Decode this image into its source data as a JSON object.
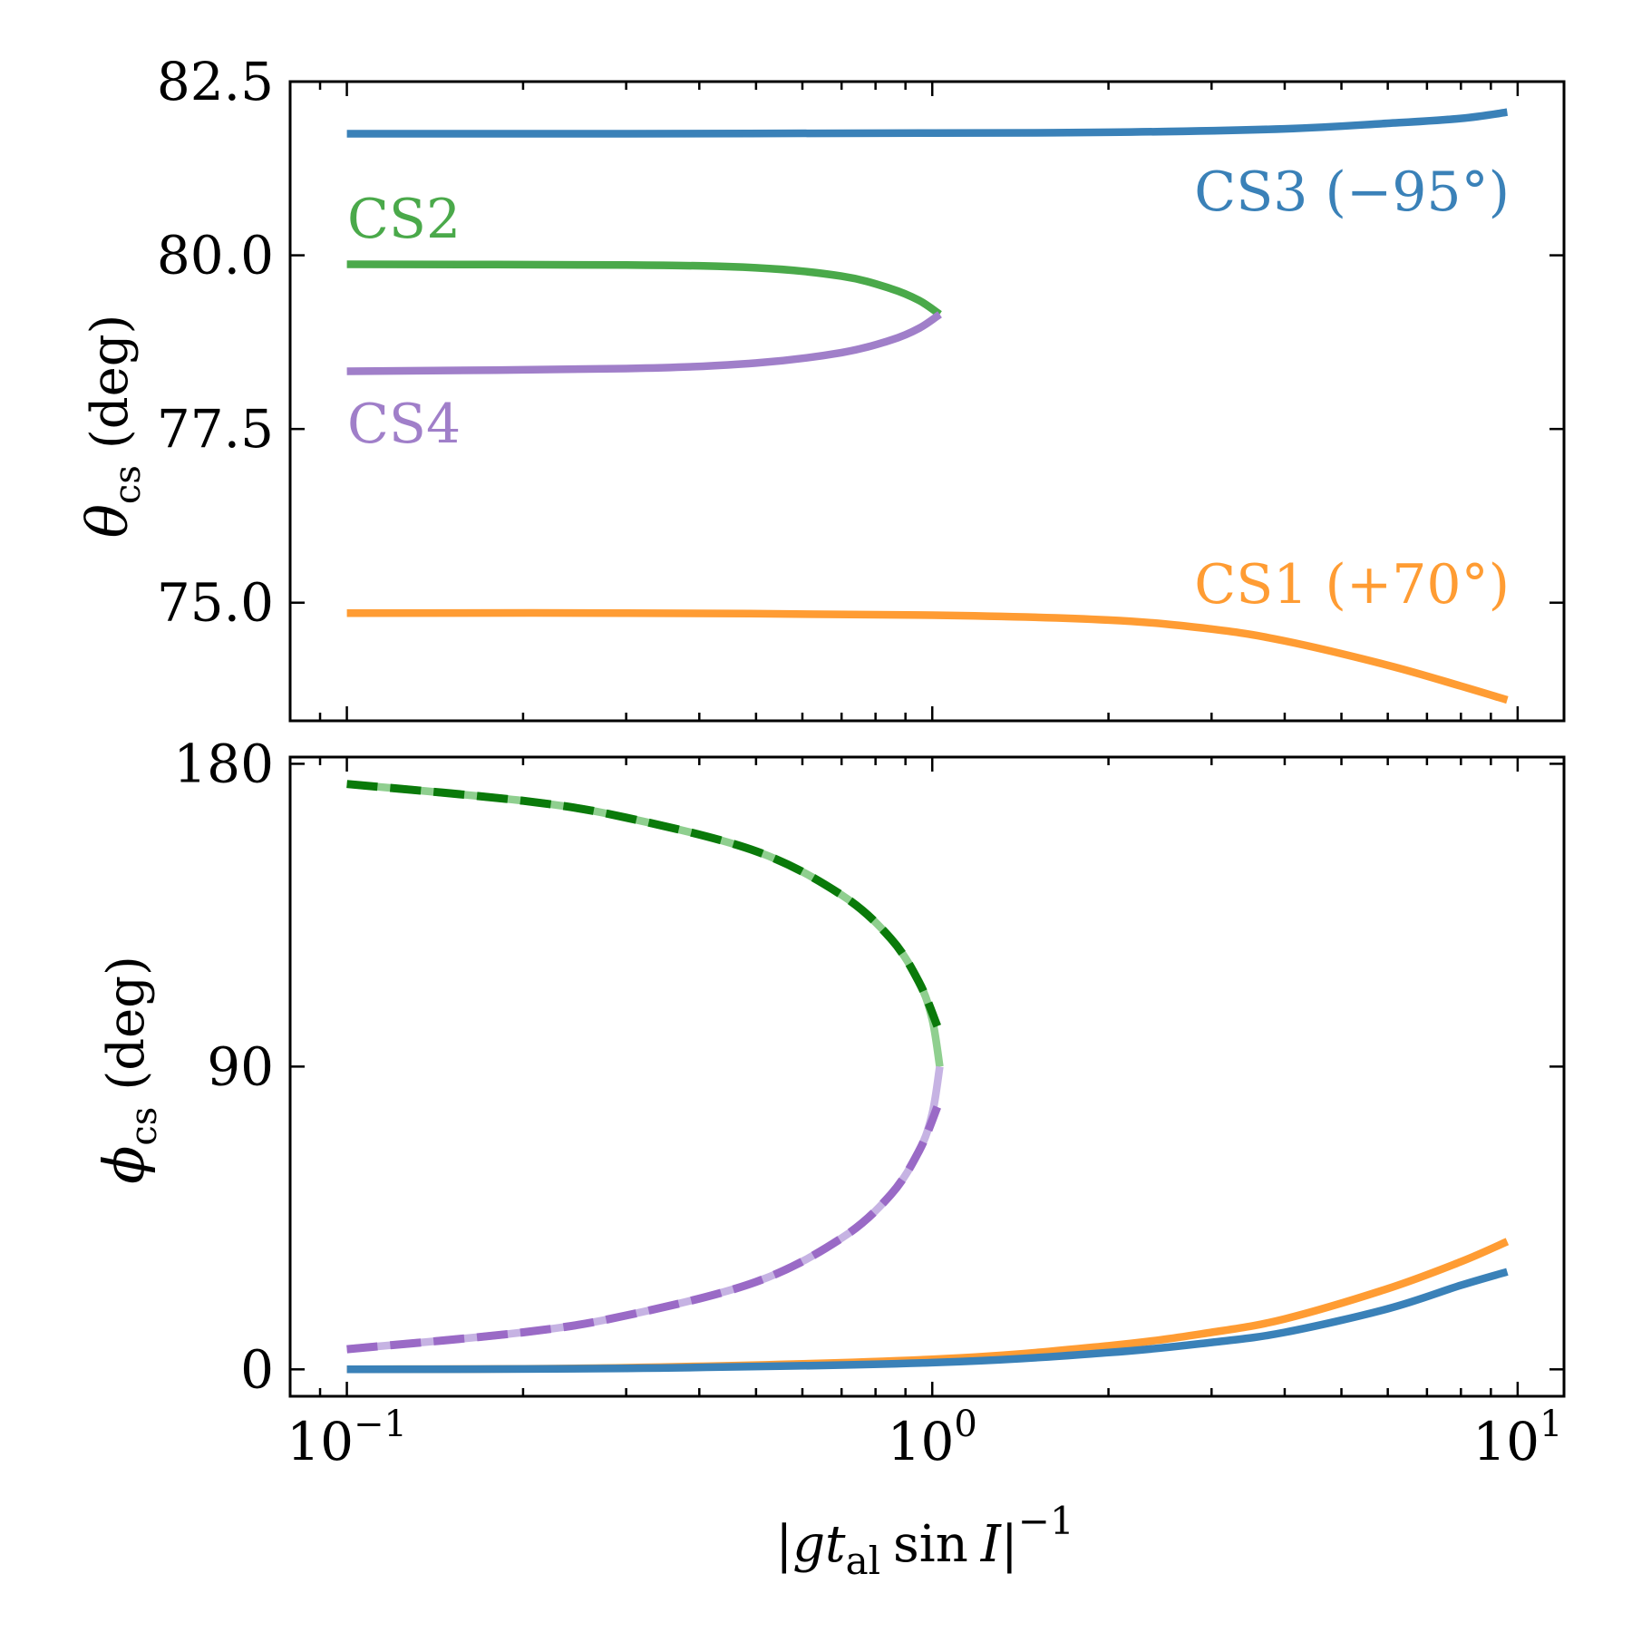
{
  "chart_data": [
    {
      "type": "line",
      "panel": "top",
      "ylabel_symbol": "θ",
      "ylabel_sub": "cs",
      "ylabel_unit": "(deg)",
      "xscale": "log",
      "xlim": [
        0.08,
        12.0
      ],
      "ylim": [
        73.3,
        82.5
      ],
      "yticks": [
        75.0,
        77.5,
        80.0,
        82.5
      ],
      "ytick_labels": [
        "75.0",
        "77.5",
        "80.0",
        "82.5"
      ],
      "series": [
        {
          "name": "CS3",
          "label": "CS3 (−95°)",
          "color": "#3a81b8",
          "style": "solid",
          "x": [
            0.1,
            0.3,
            1.0,
            2.0,
            4.0,
            6.0,
            8.0,
            9.6
          ],
          "y": [
            81.75,
            81.75,
            81.76,
            81.77,
            81.82,
            81.9,
            81.97,
            82.06
          ]
        },
        {
          "name": "CS1",
          "label": "CS1 (+70°)",
          "color": "#ff9c33",
          "style": "solid",
          "x": [
            0.1,
            0.3,
            1.0,
            2.0,
            3.0,
            4.0,
            6.0,
            8.0,
            9.6
          ],
          "y": [
            74.85,
            74.85,
            74.82,
            74.75,
            74.62,
            74.45,
            74.1,
            73.8,
            73.6
          ]
        },
        {
          "name": "CS2",
          "label": "CS2",
          "color": "#4aa94a",
          "style": "solid",
          "x": [
            0.1,
            0.3,
            0.5,
            0.7,
            0.85,
            0.95,
            1.03
          ],
          "y": [
            79.87,
            79.86,
            79.82,
            79.7,
            79.52,
            79.35,
            79.15
          ]
        },
        {
          "name": "CS4",
          "label": "CS4",
          "color": "#a07fc9",
          "style": "solid",
          "x": [
            0.1,
            0.3,
            0.5,
            0.7,
            0.85,
            0.95,
            1.03
          ],
          "y": [
            78.33,
            78.37,
            78.45,
            78.6,
            78.78,
            78.95,
            79.15
          ]
        }
      ]
    },
    {
      "type": "line",
      "panel": "bottom",
      "ylabel_symbol": "ϕ",
      "ylabel_sub": "cs",
      "ylabel_unit": "(deg)",
      "xscale": "log",
      "xlim": [
        0.08,
        12.0
      ],
      "ylim": [
        -8,
        182
      ],
      "yticks": [
        0,
        90,
        180
      ],
      "ytick_labels": [
        "0",
        "90",
        "180"
      ],
      "xticks": [
        0.1,
        1,
        10
      ],
      "xtick_base": "10",
      "xtick_exponents": [
        "−1",
        "0",
        "1"
      ],
      "xlabel_parts": {
        "open": "|",
        "g": "g",
        "t": "t",
        "sub": "al",
        "sin": "sin",
        "I": "I",
        "close": "|",
        "exp": "−1"
      },
      "series": [
        {
          "name": "CS2",
          "color": "#8fcf8f",
          "style": "solid",
          "x": [
            0.1,
            0.2,
            0.3,
            0.5,
            0.7,
            0.85,
            0.95,
            1.0,
            1.03
          ],
          "y": [
            174,
            169,
            164,
            154,
            141,
            128,
            115,
            104,
            90
          ]
        },
        {
          "name": "CS4",
          "color": "#c6b3e3",
          "style": "solid",
          "x": [
            0.1,
            0.2,
            0.3,
            0.5,
            0.7,
            0.85,
            0.95,
            1.0,
            1.03
          ],
          "y": [
            6,
            11,
            16,
            26,
            39,
            52,
            65,
            76,
            90
          ]
        },
        {
          "name": "CS2-dashed",
          "color": "#0a7a0a",
          "style": "dashed",
          "x": [
            0.1,
            0.2,
            0.3,
            0.5,
            0.7,
            0.85,
            0.95,
            1.02
          ],
          "y": [
            174,
            169,
            164,
            154,
            141,
            128,
            115,
            102
          ]
        },
        {
          "name": "CS4-dashed",
          "color": "#9a6ac6",
          "style": "dashed",
          "x": [
            0.1,
            0.2,
            0.3,
            0.5,
            0.7,
            0.85,
            0.95,
            1.02
          ],
          "y": [
            6,
            11,
            16,
            26,
            39,
            52,
            65,
            78
          ]
        },
        {
          "name": "CS1",
          "color": "#ff9c33",
          "style": "solid",
          "x": [
            0.1,
            0.3,
            1.0,
            2.0,
            3.0,
            4.0,
            6.0,
            8.0,
            9.6
          ],
          "y": [
            0,
            0.5,
            3,
            7,
            11,
            15,
            24,
            32,
            38
          ]
        },
        {
          "name": "CS3",
          "color": "#3a81b8",
          "style": "solid",
          "x": [
            0.1,
            0.3,
            1.0,
            2.0,
            3.0,
            4.0,
            6.0,
            8.0,
            9.6
          ],
          "y": [
            0,
            0.3,
            2,
            5,
            8,
            11,
            18,
            25,
            29
          ]
        }
      ]
    }
  ]
}
